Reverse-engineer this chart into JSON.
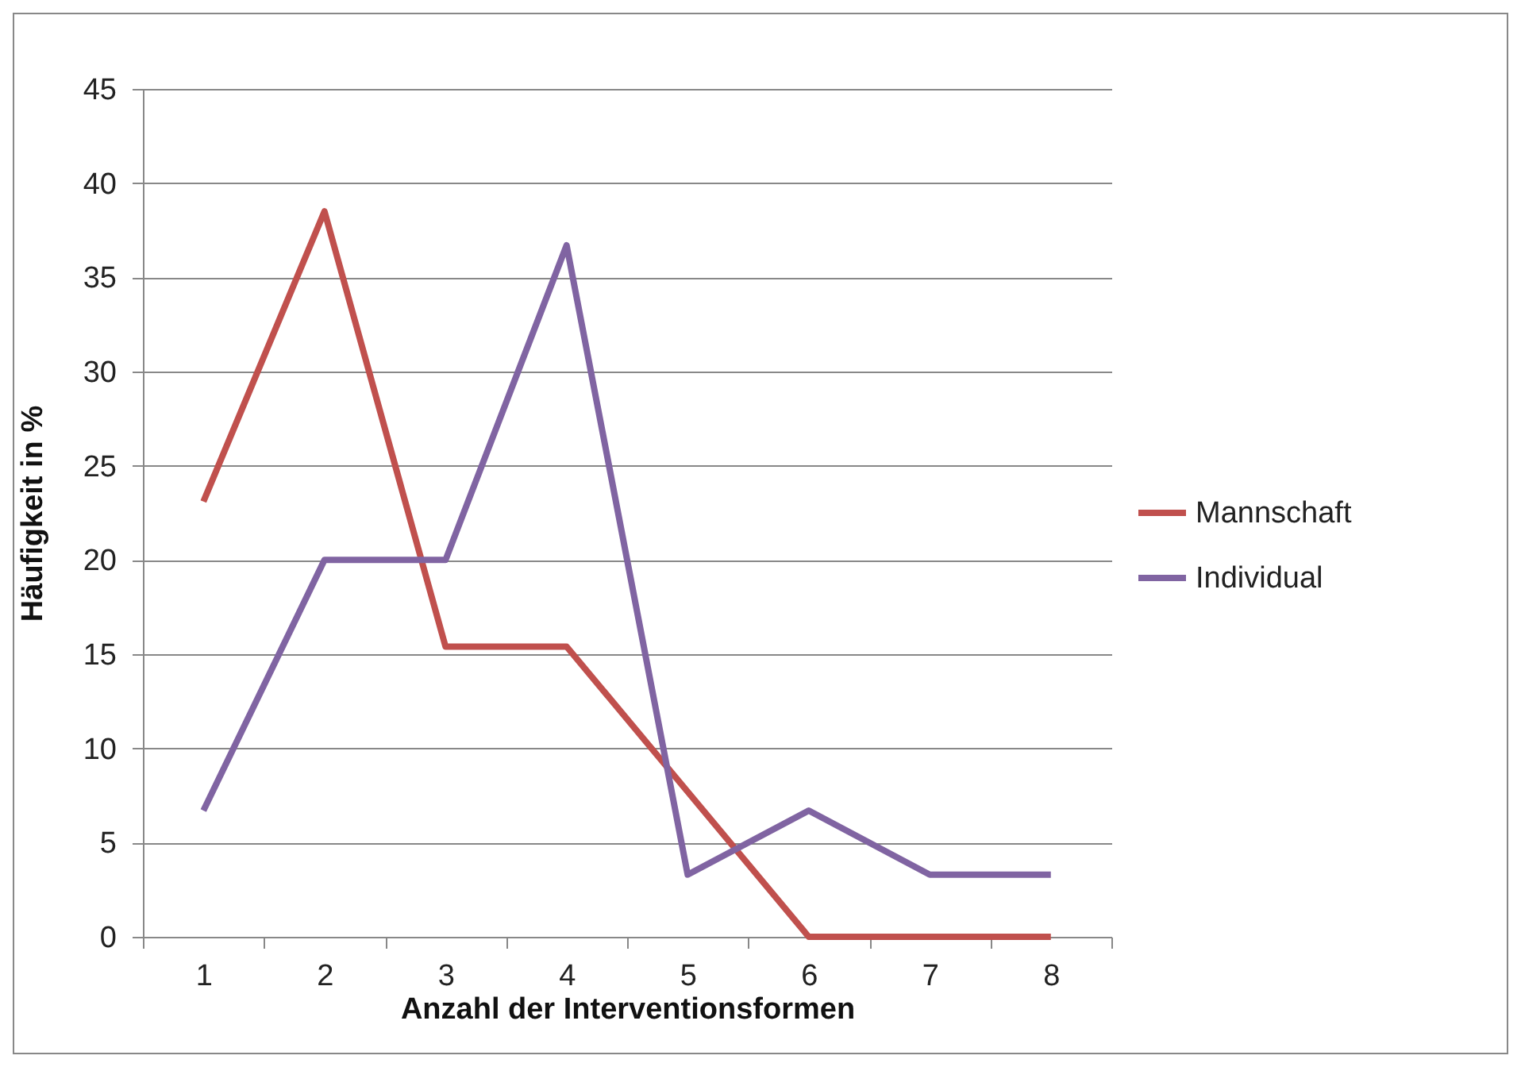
{
  "chart_data": {
    "type": "line",
    "xlabel": "Anzahl der Interventionsformen",
    "ylabel": "Häufigkeit in %",
    "categories": [
      "1",
      "2",
      "3",
      "4",
      "5",
      "6",
      "7",
      "8"
    ],
    "series": [
      {
        "name": "Mannschaft",
        "color": "#c0504d",
        "values": [
          23.1,
          38.5,
          15.4,
          15.4,
          7.7,
          0,
          0,
          0
        ]
      },
      {
        "name": "Individual",
        "color": "#8064a2",
        "values": [
          6.7,
          20,
          20,
          36.7,
          3.3,
          6.7,
          3.3,
          3.3
        ]
      }
    ],
    "ylim": [
      0,
      45
    ],
    "yticks": [
      0,
      5,
      10,
      15,
      20,
      25,
      30,
      35,
      40,
      45
    ],
    "grid": "y",
    "legend": "right",
    "marker": "none",
    "line_style": "solid"
  }
}
